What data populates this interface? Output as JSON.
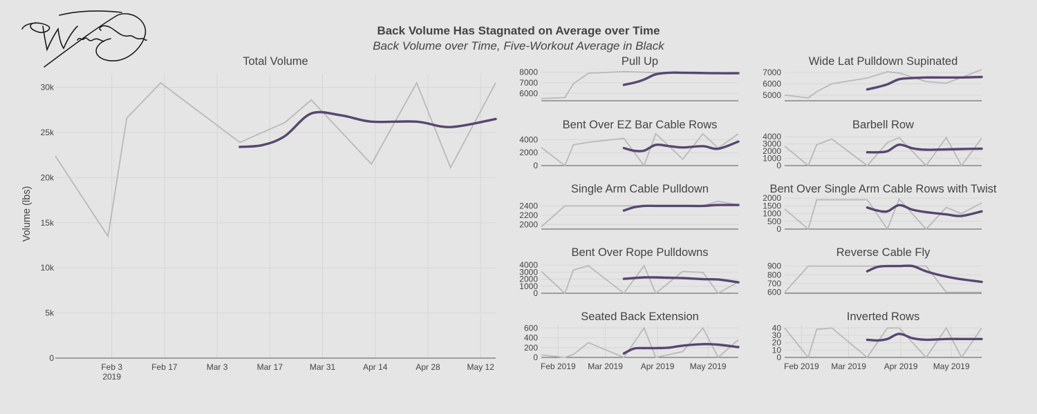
{
  "colors": {
    "background": "#e5e5e5",
    "raw_line": "#b9b9b9",
    "average_line": "#57466f",
    "grid": "#d6d6d6",
    "text": "#444444"
  },
  "signature": {
    "text": "William Greenlaw",
    "kind": "handwritten-signature"
  },
  "title": "Back Volume Has Stagnated on Average over Time",
  "subtitle": "Back Volume over Time, Five-Workout Average in Black",
  "chart_data": [
    {
      "type": "line",
      "title": "Total Volume",
      "ylabel": "Volume (lbs)",
      "xlabel": "",
      "x_ticks": [
        {
          "x": 15,
          "label": "Feb 3",
          "label2": "2019"
        },
        {
          "x": 29,
          "label": "Feb 17"
        },
        {
          "x": 43,
          "label": "Mar 3"
        },
        {
          "x": 57,
          "label": "Mar 17"
        },
        {
          "x": 71,
          "label": "Mar 31"
        },
        {
          "x": 85,
          "label": "Apr 14"
        },
        {
          "x": 99,
          "label": "Apr 28"
        },
        {
          "x": 113,
          "label": "May 12"
        }
      ],
      "y_ticks": [
        {
          "v": 0,
          "label": "0"
        },
        {
          "v": 5000,
          "label": "5k"
        },
        {
          "v": 10000,
          "label": "10k"
        },
        {
          "v": 15000,
          "label": "15k"
        },
        {
          "v": 20000,
          "label": "20k"
        },
        {
          "v": 25000,
          "label": "25k"
        },
        {
          "v": 30000,
          "label": "30k"
        }
      ],
      "xlim": [
        0,
        117
      ],
      "ylim": [
        0,
        31500
      ],
      "grid": true,
      "series": [
        {
          "role": "raw",
          "x": [
            0,
            14,
            19,
            28,
            49,
            61,
            68,
            84,
            96,
            105,
            117
          ],
          "values": [
            22400,
            13500,
            26600,
            30500,
            23900,
            26100,
            28600,
            21500,
            30500,
            21100,
            30500
          ]
        },
        {
          "role": "average",
          "x": [
            49,
            55,
            61,
            68,
            76,
            84,
            96,
            105,
            117
          ],
          "values": [
            23400,
            23600,
            24600,
            27100,
            26900,
            26200,
            26200,
            25600,
            26500
          ]
        }
      ]
    },
    {
      "type": "line",
      "title": "Pull Up",
      "x_ticks": [],
      "xlim": [
        0,
        117
      ],
      "ylim": [
        5300,
        8300
      ],
      "grid": true,
      "y_ticks": [
        {
          "v": 6000,
          "label": "6000"
        },
        {
          "v": 7000,
          "label": "7000"
        },
        {
          "v": 8000,
          "label": "8000"
        }
      ],
      "series": [
        {
          "role": "raw",
          "x": [
            0,
            14,
            19,
            28,
            49,
            61,
            68,
            84,
            96,
            105,
            117
          ],
          "values": [
            5500,
            5600,
            6900,
            7900,
            8050,
            8000,
            7950,
            7900,
            7950,
            7900,
            7900
          ]
        },
        {
          "role": "average",
          "x": [
            49,
            55,
            61,
            68,
            76,
            84,
            96,
            105,
            117
          ],
          "values": [
            6800,
            7000,
            7300,
            7800,
            7950,
            7950,
            7920,
            7900,
            7900
          ]
        }
      ]
    },
    {
      "type": "line",
      "title": "Wide Lat Pulldown Supinated",
      "x_ticks": [],
      "xlim": [
        0,
        117
      ],
      "ylim": [
        4500,
        7300
      ],
      "grid": true,
      "y_ticks": [
        {
          "v": 5000,
          "label": "5000"
        },
        {
          "v": 6000,
          "label": "6000"
        },
        {
          "v": 7000,
          "label": "7000"
        }
      ],
      "series": [
        {
          "role": "raw",
          "x": [
            0,
            14,
            19,
            28,
            49,
            61,
            68,
            84,
            96,
            105,
            117
          ],
          "values": [
            5000,
            4750,
            5300,
            6000,
            6500,
            7050,
            6950,
            6200,
            6050,
            6550,
            7250
          ]
        },
        {
          "role": "average",
          "x": [
            49,
            55,
            61,
            68,
            76,
            84,
            96,
            105,
            117
          ],
          "values": [
            5500,
            5700,
            5950,
            6400,
            6500,
            6550,
            6550,
            6550,
            6600
          ]
        }
      ]
    },
    {
      "type": "line",
      "title": "Bent Over EZ Bar Cable Rows",
      "x_ticks": [],
      "xlim": [
        0,
        117
      ],
      "ylim": [
        0,
        5000
      ],
      "grid": true,
      "y_ticks": [
        {
          "v": 0,
          "label": "0"
        },
        {
          "v": 2000,
          "label": "2000"
        },
        {
          "v": 4000,
          "label": "4000"
        }
      ],
      "series": [
        {
          "role": "raw",
          "x": [
            0,
            14,
            19,
            28,
            49,
            61,
            68,
            84,
            96,
            105,
            117
          ],
          "values": [
            2800,
            0,
            3200,
            3600,
            4200,
            0,
            4900,
            1000,
            4900,
            2700,
            4900
          ]
        },
        {
          "role": "average",
          "x": [
            49,
            55,
            61,
            68,
            76,
            84,
            96,
            105,
            117
          ],
          "values": [
            2700,
            2300,
            2300,
            3200,
            3000,
            2800,
            3000,
            2600,
            3700
          ]
        }
      ]
    },
    {
      "type": "line",
      "title": "Barbell Row",
      "x_ticks": [],
      "xlim": [
        0,
        117
      ],
      "ylim": [
        0,
        4500
      ],
      "grid": true,
      "y_ticks": [
        {
          "v": 0,
          "label": "0"
        },
        {
          "v": 1000,
          "label": "1000"
        },
        {
          "v": 2000,
          "label": "2000"
        },
        {
          "v": 3000,
          "label": "3000"
        },
        {
          "v": 4000,
          "label": "4000"
        }
      ],
      "series": [
        {
          "role": "raw",
          "x": [
            0,
            14,
            19,
            28,
            49,
            61,
            68,
            84,
            96,
            105,
            117
          ],
          "values": [
            2700,
            0,
            2900,
            3700,
            0,
            3200,
            3900,
            0,
            3900,
            0,
            3800
          ]
        },
        {
          "role": "average",
          "x": [
            49,
            55,
            61,
            68,
            76,
            84,
            96,
            105,
            117
          ],
          "values": [
            1850,
            1850,
            2000,
            2900,
            2400,
            2200,
            2250,
            2300,
            2350
          ]
        }
      ]
    },
    {
      "type": "line",
      "title": "Single Arm Cable Pulldown",
      "x_ticks": [],
      "xlim": [
        0,
        117
      ],
      "ylim": [
        1900,
        2600
      ],
      "grid": true,
      "y_ticks": [
        {
          "v": 2000,
          "label": "2000"
        },
        {
          "v": 2200,
          "label": "2200"
        },
        {
          "v": 2400,
          "label": "2400"
        }
      ],
      "series": [
        {
          "role": "raw",
          "x": [
            0,
            14,
            19,
            28,
            49,
            61,
            68,
            84,
            96,
            105,
            117
          ],
          "values": [
            1950,
            2400,
            2400,
            2400,
            2400,
            2400,
            2400,
            2400,
            2400,
            2500,
            2420
          ]
        },
        {
          "role": "average",
          "x": [
            49,
            55,
            61,
            68,
            76,
            84,
            96,
            105,
            117
          ],
          "values": [
            2300,
            2370,
            2400,
            2400,
            2400,
            2400,
            2400,
            2420,
            2420
          ]
        }
      ]
    },
    {
      "type": "line",
      "title": "Bent Over Single Arm Cable Rows with Twist",
      "x_ticks": [],
      "xlim": [
        0,
        117
      ],
      "ylim": [
        0,
        2100
      ],
      "grid": true,
      "y_ticks": [
        {
          "v": 0,
          "label": "0"
        },
        {
          "v": 500,
          "label": "500"
        },
        {
          "v": 1000,
          "label": "1000"
        },
        {
          "v": 1500,
          "label": "1500"
        },
        {
          "v": 2000,
          "label": "2000"
        }
      ],
      "series": [
        {
          "role": "raw",
          "x": [
            0,
            14,
            19,
            28,
            49,
            61,
            68,
            84,
            96,
            105,
            117
          ],
          "values": [
            1300,
            0,
            1900,
            1900,
            1900,
            0,
            1950,
            0,
            1400,
            1000,
            1700
          ]
        },
        {
          "role": "average",
          "x": [
            49,
            55,
            61,
            68,
            76,
            84,
            96,
            105,
            117
          ],
          "values": [
            1400,
            1200,
            1150,
            1550,
            1250,
            1100,
            950,
            850,
            1150
          ]
        }
      ]
    },
    {
      "type": "line",
      "title": "Bent Over Rope Pulldowns",
      "x_ticks": [],
      "xlim": [
        0,
        117
      ],
      "ylim": [
        0,
        4600
      ],
      "grid": true,
      "y_ticks": [
        {
          "v": 0,
          "label": "0"
        },
        {
          "v": 1000,
          "label": "1000"
        },
        {
          "v": 2000,
          "label": "2000"
        },
        {
          "v": 3000,
          "label": "3000"
        },
        {
          "v": 4000,
          "label": "4000"
        }
      ],
      "series": [
        {
          "role": "raw",
          "x": [
            0,
            14,
            19,
            28,
            49,
            61,
            68,
            84,
            96,
            105,
            117
          ],
          "values": [
            3100,
            0,
            3300,
            3900,
            0,
            3900,
            0,
            3100,
            2950,
            0,
            1600
          ]
        },
        {
          "role": "average",
          "x": [
            49,
            55,
            61,
            68,
            76,
            84,
            96,
            105,
            117
          ],
          "values": [
            2050,
            2150,
            2250,
            2250,
            2200,
            2150,
            2000,
            1950,
            1550
          ]
        }
      ]
    },
    {
      "type": "line",
      "title": "Reverse Cable Fly",
      "x_ticks": [],
      "xlim": [
        0,
        117
      ],
      "ylim": [
        590,
        960
      ],
      "grid": true,
      "y_ticks": [
        {
          "v": 600,
          "label": "600"
        },
        {
          "v": 700,
          "label": "700"
        },
        {
          "v": 800,
          "label": "800"
        },
        {
          "v": 900,
          "label": "900"
        }
      ],
      "series": [
        {
          "role": "raw",
          "x": [
            0,
            14,
            19,
            28,
            49,
            61,
            68,
            84,
            96,
            105,
            117
          ],
          "values": [
            600,
            900,
            900,
            900,
            900,
            900,
            900,
            900,
            600,
            600,
            600
          ]
        },
        {
          "role": "average",
          "x": [
            49,
            55,
            61,
            68,
            76,
            84,
            96,
            105,
            117
          ],
          "values": [
            840,
            890,
            900,
            900,
            900,
            840,
            780,
            750,
            720
          ]
        }
      ]
    },
    {
      "type": "line",
      "title": "Seated Back Extension",
      "xlim": [
        0,
        117
      ],
      "ylim": [
        0,
        660
      ],
      "grid": true,
      "x_ticks": [
        {
          "x": 10,
          "label": "Feb 2019"
        },
        {
          "x": 38,
          "label": "Mar 2019"
        },
        {
          "x": 69,
          "label": "Apr 2019"
        },
        {
          "x": 99,
          "label": "May 2019"
        }
      ],
      "y_ticks": [
        {
          "v": 0,
          "label": "0"
        },
        {
          "v": 200,
          "label": "200"
        },
        {
          "v": 400,
          "label": "400"
        },
        {
          "v": 600,
          "label": "600"
        }
      ],
      "series": [
        {
          "role": "raw",
          "x": [
            0,
            14,
            19,
            28,
            49,
            61,
            68,
            84,
            96,
            105,
            117
          ],
          "values": [
            50,
            0,
            60,
            300,
            0,
            600,
            0,
            120,
            600,
            0,
            360
          ]
        },
        {
          "role": "average",
          "x": [
            49,
            55,
            61,
            68,
            76,
            84,
            96,
            105,
            117
          ],
          "values": [
            80,
            180,
            190,
            190,
            200,
            240,
            270,
            260,
            210
          ]
        }
      ]
    },
    {
      "type": "line",
      "title": "Inverted Rows",
      "xlim": [
        0,
        117
      ],
      "ylim": [
        0,
        44
      ],
      "grid": true,
      "x_ticks": [
        {
          "x": 10,
          "label": "Feb 2019"
        },
        {
          "x": 38,
          "label": "Mar 2019"
        },
        {
          "x": 69,
          "label": "Apr 2019"
        },
        {
          "x": 99,
          "label": "May 2019"
        }
      ],
      "y_ticks": [
        {
          "v": 0,
          "label": "0"
        },
        {
          "v": 10,
          "label": "10"
        },
        {
          "v": 20,
          "label": "20"
        },
        {
          "v": 30,
          "label": "30"
        },
        {
          "v": 40,
          "label": "40"
        }
      ],
      "series": [
        {
          "role": "raw",
          "x": [
            0,
            14,
            19,
            28,
            49,
            61,
            68,
            84,
            96,
            105,
            117
          ],
          "values": [
            40,
            0,
            38,
            40,
            0,
            40,
            40,
            0,
            40,
            0,
            40
          ]
        },
        {
          "role": "average",
          "x": [
            49,
            55,
            61,
            68,
            76,
            84,
            96,
            105,
            117
          ],
          "values": [
            24,
            23,
            25,
            32,
            26,
            24,
            25,
            25,
            25
          ]
        }
      ]
    }
  ]
}
